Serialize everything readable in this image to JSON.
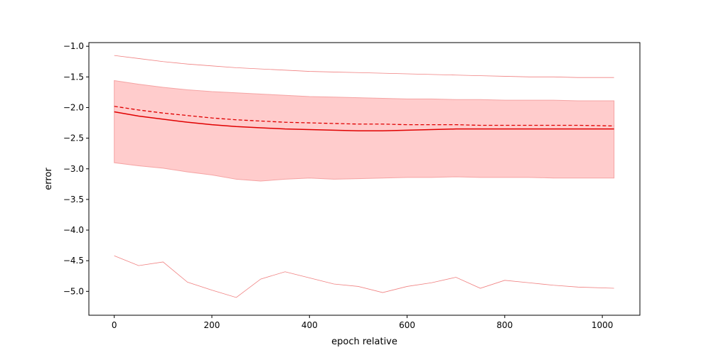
{
  "chart_data": {
    "type": "line",
    "title": "",
    "xlabel": "epoch relative",
    "ylabel": "error",
    "xlim": [
      -52,
      1077
    ],
    "ylim": [
      -5.39,
      -0.94
    ],
    "xticks": [
      0,
      200,
      400,
      600,
      800,
      1000
    ],
    "yticks": [
      -1.0,
      -1.5,
      -2.0,
      -2.5,
      -3.0,
      -3.5,
      -4.0,
      -4.5,
      -5.0
    ],
    "grid": false,
    "legend": "none",
    "colors": {
      "main": "#e00000",
      "band": "#ffcccc",
      "thin": "#f08080"
    },
    "x": [
      0,
      50,
      100,
      150,
      200,
      250,
      300,
      350,
      400,
      450,
      500,
      550,
      600,
      650,
      700,
      750,
      800,
      850,
      900,
      950,
      1024
    ],
    "series": [
      {
        "style": "solid",
        "values": [
          -2.07,
          -2.14,
          -2.19,
          -2.24,
          -2.28,
          -2.31,
          -2.33,
          -2.35,
          -2.36,
          -2.37,
          -2.38,
          -2.38,
          -2.37,
          -2.36,
          -2.35,
          -2.35,
          -2.35,
          -2.35,
          -2.35,
          -2.35,
          -2.35
        ]
      },
      {
        "style": "dashed",
        "values": [
          -1.98,
          -2.04,
          -2.09,
          -2.13,
          -2.17,
          -2.2,
          -2.22,
          -2.24,
          -2.25,
          -2.26,
          -2.27,
          -2.27,
          -2.28,
          -2.28,
          -2.28,
          -2.29,
          -2.29,
          -2.29,
          -2.29,
          -2.29,
          -2.3
        ]
      },
      {
        "style": "band-upper",
        "values": [
          -1.56,
          -1.62,
          -1.67,
          -1.71,
          -1.74,
          -1.76,
          -1.78,
          -1.8,
          -1.82,
          -1.83,
          -1.84,
          -1.85,
          -1.86,
          -1.86,
          -1.87,
          -1.87,
          -1.88,
          -1.88,
          -1.88,
          -1.89,
          -1.89
        ]
      },
      {
        "style": "band-lower",
        "values": [
          -2.9,
          -2.95,
          -2.99,
          -3.05,
          -3.1,
          -3.17,
          -3.2,
          -3.17,
          -3.15,
          -3.17,
          -3.16,
          -3.15,
          -3.14,
          -3.14,
          -3.13,
          -3.14,
          -3.14,
          -3.14,
          -3.15,
          -3.15,
          -3.15
        ]
      },
      {
        "style": "thin-upper",
        "values": [
          -1.15,
          -1.2,
          -1.25,
          -1.29,
          -1.32,
          -1.35,
          -1.37,
          -1.39,
          -1.41,
          -1.42,
          -1.43,
          -1.44,
          -1.45,
          -1.46,
          -1.47,
          -1.48,
          -1.49,
          -1.5,
          -1.5,
          -1.51,
          -1.51
        ]
      },
      {
        "style": "thin-lower",
        "values": [
          -4.42,
          -4.58,
          -4.52,
          -4.85,
          -4.98,
          -5.1,
          -4.8,
          -4.68,
          -4.78,
          -4.88,
          -4.92,
          -5.02,
          -4.92,
          -4.86,
          -4.77,
          -4.95,
          -4.82,
          -4.86,
          -4.9,
          -4.93,
          -4.95
        ]
      }
    ]
  }
}
